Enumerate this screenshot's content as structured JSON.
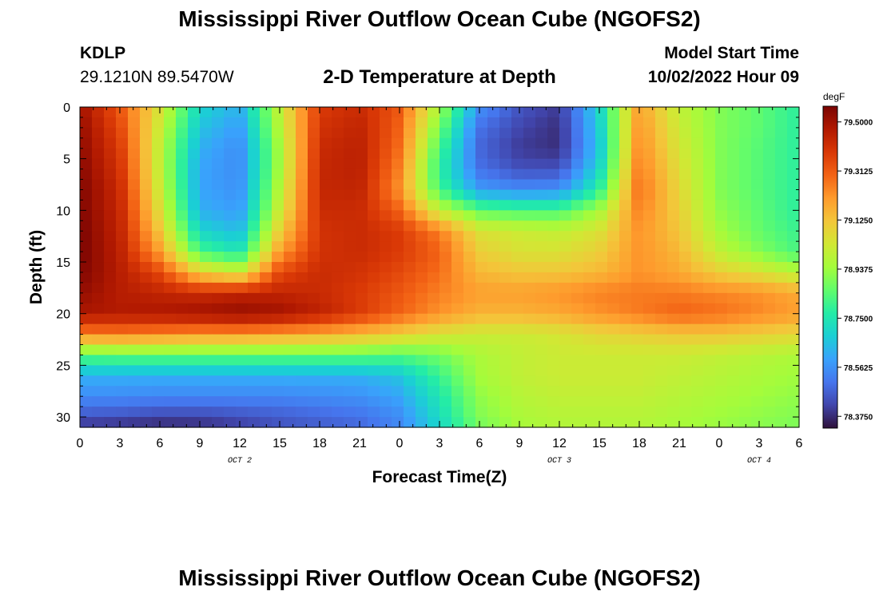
{
  "header": {
    "title": "Mississippi River Outflow Ocean Cube (NGOFS2)",
    "station_id": "KDLP",
    "station_coords": "29.1210N  89.5470W",
    "subtitle": "2-D Temperature at Depth",
    "model_start_label": "Model Start Time",
    "model_start_time": "10/02/2022 Hour 09",
    "footer_title": "Mississippi River Outflow Ocean Cube (NGOFS2)"
  },
  "chart_data": {
    "type": "heatmap",
    "title": "2-D Temperature at Depth",
    "xlabel": "Forecast Time(Z)",
    "ylabel": "Depth (ft)",
    "x_ticks": [
      "0",
      "3",
      "6",
      "9",
      "12",
      "15",
      "18",
      "21",
      "0",
      "3",
      "6",
      "9",
      "12",
      "15",
      "18",
      "21",
      "0",
      "3",
      "6"
    ],
    "x_hours_range": [
      0,
      54
    ],
    "date_labels": [
      {
        "label": "OCT 2",
        "hour": 12
      },
      {
        "label": "OCT 3",
        "hour": 36
      },
      {
        "label": "OCT 4",
        "hour": 51
      }
    ],
    "y_ticks": [
      "0",
      "5",
      "10",
      "15",
      "20",
      "25",
      "30"
    ],
    "ylim": [
      0,
      31
    ],
    "y_inverted": true,
    "colorbar": {
      "unit": "degF",
      "ticks": [
        "79.5000",
        "79.3125",
        "79.1250",
        "78.9375",
        "78.7500",
        "78.5625",
        "78.3750"
      ],
      "range": [
        78.33,
        79.56
      ]
    },
    "colormap": [
      "#30123b",
      "#4145ab",
      "#4675ed",
      "#39a2fc",
      "#1bcfd4",
      "#24eca6",
      "#61fc6c",
      "#a4fc3b",
      "#d1e834",
      "#f3c63a",
      "#fe9b2d",
      "#f36315",
      "#d93806",
      "#b11901",
      "#7a0402"
    ],
    "x_hours": [
      0,
      3,
      6,
      9,
      12,
      15,
      18,
      21,
      24,
      27,
      30,
      33,
      36,
      39,
      42,
      45,
      48,
      51,
      54
    ],
    "y_depths": [
      0,
      2,
      4,
      6,
      8,
      10,
      12,
      14,
      16,
      18,
      20,
      22,
      24,
      26,
      28,
      30,
      31
    ],
    "temperature_degF": [
      [
        79.5,
        79.32,
        79.05,
        78.7,
        78.62,
        79.0,
        79.38,
        79.42,
        79.32,
        78.95,
        78.56,
        78.45,
        78.4,
        78.7,
        79.2,
        79.0,
        78.9,
        78.85,
        78.78
      ],
      [
        79.52,
        79.35,
        79.02,
        78.66,
        78.58,
        78.98,
        79.4,
        79.44,
        79.3,
        78.88,
        78.5,
        78.42,
        78.38,
        78.68,
        79.22,
        79.02,
        78.9,
        78.85,
        78.78
      ],
      [
        79.53,
        79.38,
        79.0,
        78.62,
        78.55,
        78.95,
        79.42,
        79.45,
        79.28,
        78.82,
        78.48,
        78.4,
        78.38,
        78.66,
        79.24,
        79.04,
        78.9,
        78.84,
        78.78
      ],
      [
        79.54,
        79.4,
        79.0,
        78.6,
        78.55,
        78.95,
        79.43,
        79.45,
        79.25,
        78.78,
        78.5,
        78.44,
        78.44,
        78.7,
        79.26,
        79.06,
        78.9,
        78.84,
        78.78
      ],
      [
        79.55,
        79.42,
        79.02,
        78.6,
        78.56,
        78.98,
        79.43,
        79.44,
        79.22,
        78.82,
        78.58,
        78.55,
        78.56,
        78.78,
        79.28,
        79.08,
        78.9,
        78.84,
        78.78
      ],
      [
        79.55,
        79.43,
        79.06,
        78.62,
        78.58,
        79.02,
        79.42,
        79.42,
        79.3,
        79.0,
        78.85,
        78.82,
        78.82,
        78.95,
        79.25,
        79.1,
        78.92,
        78.85,
        78.78
      ],
      [
        79.56,
        79.44,
        79.12,
        78.7,
        78.64,
        79.1,
        79.4,
        79.42,
        79.38,
        79.25,
        79.05,
        79.02,
        79.0,
        79.05,
        79.22,
        79.12,
        78.95,
        78.86,
        78.8
      ],
      [
        79.56,
        79.45,
        79.2,
        78.82,
        78.74,
        79.2,
        79.4,
        79.42,
        79.38,
        79.3,
        79.1,
        79.05,
        79.05,
        79.1,
        79.22,
        79.15,
        79.0,
        78.9,
        78.82
      ],
      [
        79.55,
        79.46,
        79.35,
        79.1,
        79.02,
        79.35,
        79.42,
        79.4,
        79.35,
        79.28,
        79.15,
        79.12,
        79.12,
        79.15,
        79.22,
        79.18,
        79.1,
        79.05,
        78.98
      ],
      [
        79.52,
        79.46,
        79.44,
        79.42,
        79.44,
        79.44,
        79.42,
        79.38,
        79.32,
        79.25,
        79.2,
        79.2,
        79.22,
        79.25,
        79.26,
        79.26,
        79.24,
        79.22,
        79.18
      ],
      [
        79.48,
        79.47,
        79.48,
        79.5,
        79.52,
        79.5,
        79.45,
        79.38,
        79.3,
        79.22,
        79.16,
        79.16,
        79.18,
        79.22,
        79.26,
        79.3,
        79.28,
        79.24,
        79.2
      ],
      [
        79.25,
        79.26,
        79.24,
        79.22,
        79.22,
        79.2,
        79.18,
        79.15,
        79.1,
        79.05,
        79.02,
        79.02,
        79.04,
        79.08,
        79.1,
        79.12,
        79.12,
        79.1,
        79.08
      ],
      [
        78.85,
        78.86,
        78.86,
        78.86,
        78.86,
        78.86,
        78.86,
        78.86,
        78.84,
        78.88,
        78.96,
        79.0,
        79.02,
        79.02,
        79.02,
        79.02,
        79.0,
        78.98,
        78.96
      ],
      [
        78.62,
        78.62,
        78.62,
        78.62,
        78.62,
        78.62,
        78.62,
        78.62,
        78.66,
        78.8,
        78.95,
        79.0,
        79.02,
        79.02,
        79.02,
        79.0,
        78.98,
        78.96,
        78.94
      ],
      [
        78.55,
        78.55,
        78.54,
        78.54,
        78.54,
        78.54,
        78.55,
        78.56,
        78.6,
        78.75,
        78.92,
        78.98,
        79.0,
        79.0,
        79.0,
        78.98,
        78.96,
        78.94,
        78.92
      ],
      [
        78.45,
        78.44,
        78.42,
        78.42,
        78.44,
        78.46,
        78.48,
        78.5,
        78.55,
        78.72,
        78.9,
        78.96,
        78.98,
        78.98,
        78.98,
        78.96,
        78.94,
        78.92,
        78.9
      ],
      [
        78.38,
        78.37,
        78.36,
        78.37,
        78.4,
        78.44,
        78.46,
        78.48,
        78.54,
        78.7,
        78.88,
        78.95,
        78.97,
        78.97,
        78.97,
        78.95,
        78.93,
        78.91,
        78.89
      ]
    ]
  }
}
